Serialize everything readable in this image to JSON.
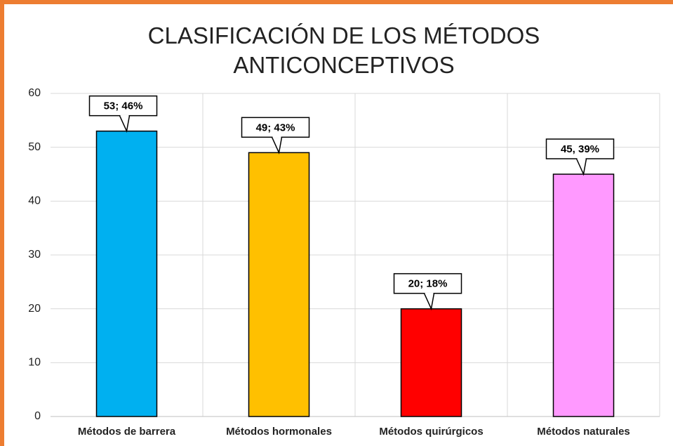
{
  "chart_data": {
    "type": "bar",
    "title": "CLASIFICACIÓN DE LOS MÉTODOS ANTICONCEPTIVOS",
    "categories": [
      "Métodos de barrera",
      "Métodos hormonales",
      "Métodos quirúrgicos",
      "Métodos naturales"
    ],
    "values": [
      53,
      49,
      20,
      45
    ],
    "value_labels": [
      "53; 46%",
      "49; 43%",
      "20; 18%",
      "45, 39%"
    ],
    "colors": [
      "#00b0f0",
      "#ffc000",
      "#ff0000",
      "#ff99ff"
    ],
    "ylim": [
      0,
      60
    ],
    "yticks": [
      0,
      10,
      20,
      30,
      40,
      50,
      60
    ],
    "grid": true
  }
}
